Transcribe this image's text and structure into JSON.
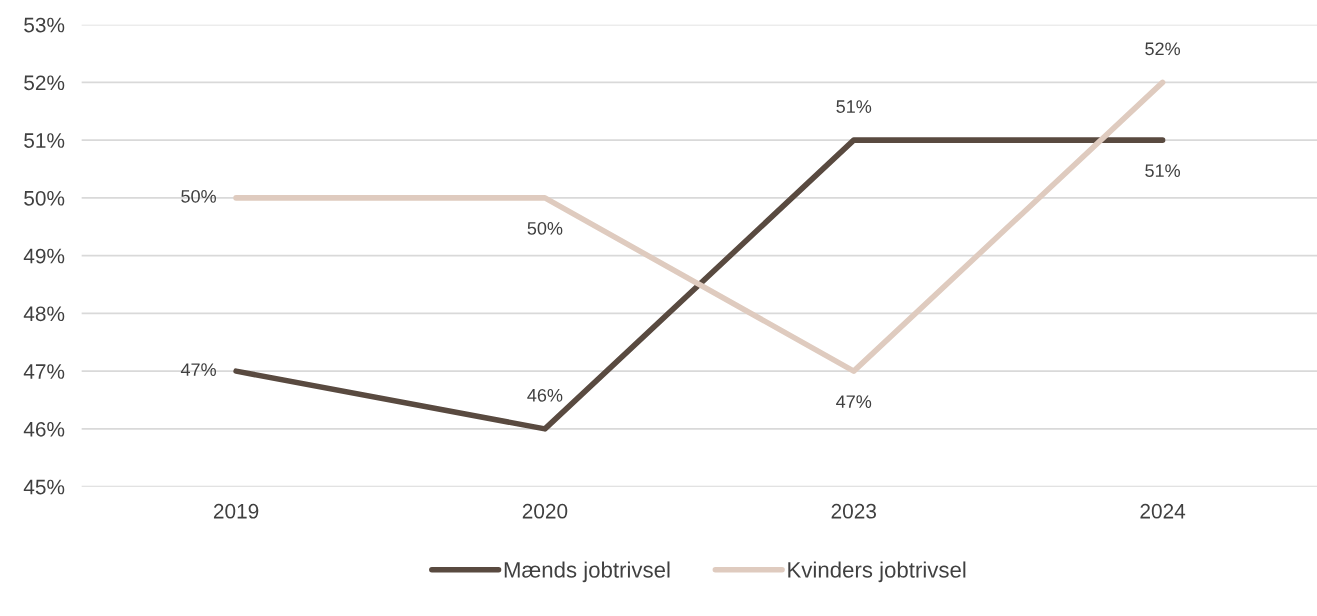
{
  "chart_data": {
    "type": "line",
    "categories": [
      "2019",
      "2020",
      "2023",
      "2024"
    ],
    "series": [
      {
        "name": "Mænds jobtrivsel",
        "color": "#594a40",
        "values": [
          47,
          46,
          51,
          51
        ],
        "value_labels": [
          "47%",
          "46%",
          "51%",
          "51%"
        ]
      },
      {
        "name": "Kvinders jobtrivsel",
        "color": "#dfcbbf",
        "values": [
          50,
          50,
          47,
          52
        ],
        "value_labels": [
          "50%",
          "50%",
          "47%",
          "52%"
        ]
      }
    ],
    "ylim": [
      45,
      53
    ],
    "yticks": [
      {
        "value": 45,
        "label": "45%"
      },
      {
        "value": 46,
        "label": "46%"
      },
      {
        "value": 47,
        "label": "47%"
      },
      {
        "value": 48,
        "label": "48%"
      },
      {
        "value": 49,
        "label": "49%"
      },
      {
        "value": 50,
        "label": "50%"
      },
      {
        "value": 51,
        "label": "51%"
      },
      {
        "value": 52,
        "label": "52%"
      },
      {
        "value": 53,
        "label": "53%"
      }
    ],
    "grid": "y",
    "legend": "bottom",
    "marker": "none",
    "line_style": "solid"
  }
}
